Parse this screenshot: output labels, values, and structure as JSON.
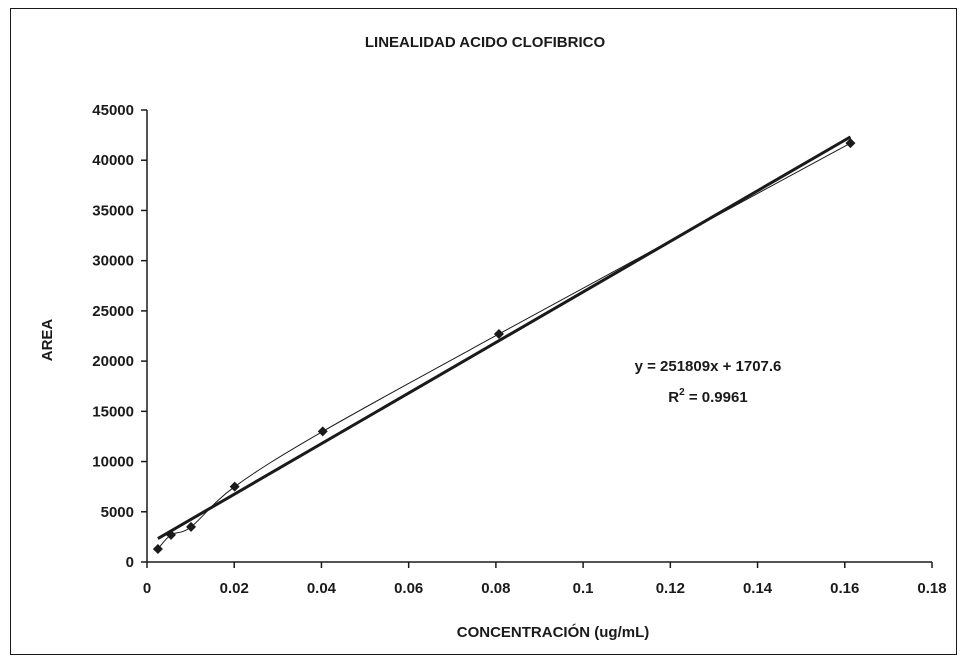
{
  "chart_data": {
    "type": "scatter",
    "title": "LINEALIDAD  ACIDO CLOFIBRICO",
    "xlabel": "CONCENTRACIÓN (ug/mL)",
    "ylabel": "AREA",
    "xlim": [
      0,
      0.18
    ],
    "ylim": [
      0,
      45000
    ],
    "x_ticks": [
      0,
      0.02,
      0.04,
      0.06,
      0.08,
      0.1,
      0.12,
      0.14,
      0.16,
      0.18
    ],
    "x_tick_labels": [
      "0",
      "0.02",
      "0.04",
      "0.06",
      "0.08",
      "0.1",
      "0.12",
      "0.14",
      "0.16",
      "0.18"
    ],
    "y_ticks": [
      0,
      5000,
      10000,
      15000,
      20000,
      25000,
      30000,
      35000,
      40000,
      45000
    ],
    "y_tick_labels": [
      "0",
      "5000",
      "10000",
      "15000",
      "20000",
      "25000",
      "30000",
      "35000",
      "40000",
      "45000"
    ],
    "grid": false,
    "legend": "none",
    "series": [
      {
        "x": [
          0.0025,
          0.0055,
          0.0101,
          0.0201,
          0.0403,
          0.0807,
          0.1613
        ],
        "y": [
          1300,
          2700,
          3500,
          7500,
          13000,
          22700,
          41700
        ],
        "marker": "diamond",
        "smooth_line": true
      }
    ],
    "trendline": {
      "type": "linear",
      "slope": 251809,
      "intercept": 1707.6,
      "equation": "y = 251809x + 1707.6",
      "r2_label": "R",
      "r2_sup": "2",
      "r2_value": " = 0.9961"
    },
    "colors": {
      "ink": "#1a1a1a",
      "background": "#ffffff"
    }
  }
}
